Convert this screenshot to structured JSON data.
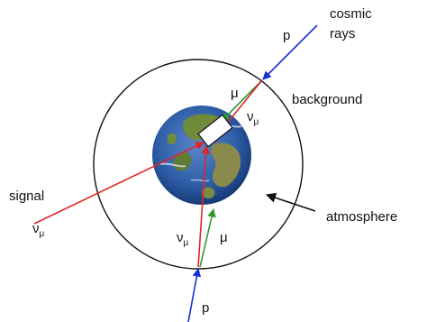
{
  "labels": {
    "cosmic_line1": "cosmic",
    "cosmic_line2": "rays",
    "p_top": "p",
    "p_bottom": "p",
    "background": "background",
    "signal": "signal",
    "atmosphere": "atmosphere",
    "nu": "ν",
    "mu_sub": "μ",
    "mu": "μ"
  },
  "colors": {
    "proton_track": "#1a2fd6",
    "muon_track": "#2e9a2e",
    "neutrino_track": "#e0262a",
    "atmosphere_circle": "#111111",
    "arrow": "#111111",
    "ocean": "#2f5fa8",
    "land": "#6f8a3a",
    "detector": "#ffffff"
  },
  "icons": {
    "earth": "earth-globe-icon",
    "detector": "detector-box-icon"
  }
}
